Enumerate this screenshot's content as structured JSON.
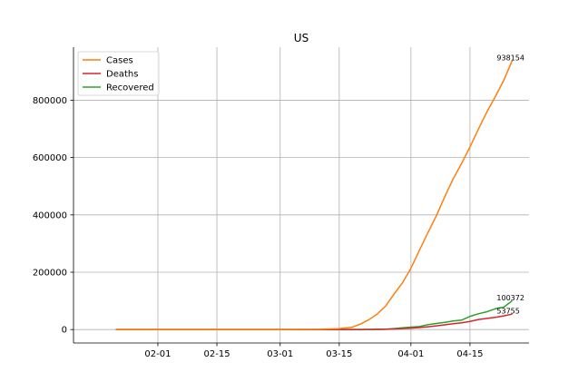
{
  "chart_data": {
    "type": "line",
    "title": "US",
    "xlabel": "",
    "ylabel": "",
    "x": [
      "2020-01-22",
      "2020-02-01",
      "2020-02-15",
      "2020-03-01",
      "2020-03-10",
      "2020-03-15",
      "2020-03-18",
      "2020-03-20",
      "2020-03-22",
      "2020-03-24",
      "2020-03-26",
      "2020-03-28",
      "2020-03-30",
      "2020-04-01",
      "2020-04-03",
      "2020-04-05",
      "2020-04-07",
      "2020-04-09",
      "2020-04-11",
      "2020-04-13",
      "2020-04-15",
      "2020-04-17",
      "2020-04-19",
      "2020-04-21",
      "2020-04-23",
      "2020-04-25"
    ],
    "series": [
      {
        "name": "Cases",
        "color": "#ff7f0e",
        "values": [
          1,
          8,
          15,
          30,
          900,
          3500,
          8000,
          19000,
          34000,
          54000,
          82000,
          124000,
          163000,
          214000,
          276000,
          337000,
          396000,
          463000,
          525000,
          579000,
          637000,
          699000,
          759000,
          812000,
          869000,
          938154
        ]
      },
      {
        "name": "Deaths",
        "color": "#d62728",
        "values": [
          0,
          0,
          0,
          1,
          28,
          60,
          150,
          260,
          470,
          800,
          1300,
          2200,
          3200,
          5100,
          7100,
          9600,
          12700,
          16500,
          20500,
          23600,
          28300,
          35000,
          39000,
          42500,
          47700,
          53755
        ]
      },
      {
        "name": "Recovered",
        "color": "#2ca02c",
        "values": [
          0,
          0,
          3,
          7,
          8,
          12,
          100,
          150,
          170,
          350,
          1000,
          3500,
          6000,
          8500,
          10500,
          17000,
          21000,
          25000,
          30000,
          33000,
          46000,
          55000,
          62000,
          72500,
          78000,
          100372
        ]
      }
    ],
    "annotations": [
      {
        "text": "938154",
        "series": "Cases"
      },
      {
        "text": "100372",
        "series": "Recovered"
      },
      {
        "text": "53755",
        "series": "Deaths"
      }
    ],
    "x_ticks": [
      {
        "date": "2020-02-01",
        "label": "02-01"
      },
      {
        "date": "2020-02-15",
        "label": "02-15"
      },
      {
        "date": "2020-03-01",
        "label": "03-01"
      },
      {
        "date": "2020-03-15",
        "label": "03-15"
      },
      {
        "date": "2020-04-01",
        "label": "04-01"
      },
      {
        "date": "2020-04-15",
        "label": "04-15"
      }
    ],
    "y_ticks": [
      {
        "value": 0,
        "label": "0"
      },
      {
        "value": 200000,
        "label": "200000"
      },
      {
        "value": 400000,
        "label": "400000"
      },
      {
        "value": 600000,
        "label": "600000"
      },
      {
        "value": 800000,
        "label": "800000"
      }
    ],
    "xlim": [
      "2020-01-12",
      "2020-04-29"
    ],
    "ylim": [
      -46900,
      985000
    ],
    "grid": true,
    "legend_position": "upper-left"
  }
}
